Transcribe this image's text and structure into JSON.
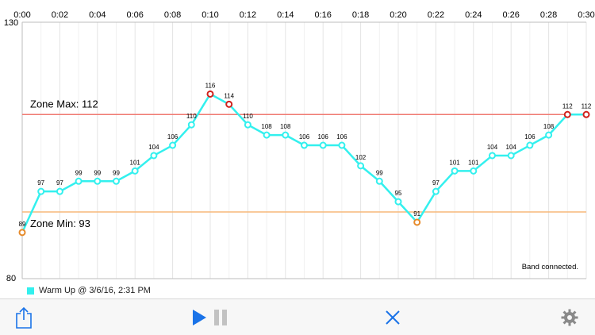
{
  "chart_data": {
    "type": "line",
    "x_ticks": [
      "0:00",
      "0:02",
      "0:04",
      "0:06",
      "0:08",
      "0:10",
      "0:12",
      "0:14",
      "0:16",
      "0:18",
      "0:20",
      "0:22",
      "0:24",
      "0:26",
      "0:28",
      "0:30"
    ],
    "x_unit": "minutes",
    "xlim": [
      0,
      30
    ],
    "ylim": [
      80,
      130
    ],
    "y_tick_labels": [
      "130",
      "80"
    ],
    "grid": "vertical",
    "series": [
      {
        "name": "Warm Up @ 3/6/16, 2:31 PM",
        "color": "#33f0ee",
        "x": [
          0,
          1,
          2,
          3,
          4,
          5,
          6,
          7,
          8,
          9,
          10,
          11,
          12,
          13,
          14,
          15,
          16,
          17,
          18,
          19,
          20,
          21,
          22,
          23,
          24,
          25,
          26,
          27,
          28,
          29,
          30
        ],
        "values": [
          89,
          97,
          97,
          99,
          99,
          99,
          101,
          104,
          106,
          110,
          116,
          114,
          110,
          108,
          108,
          106,
          106,
          106,
          102,
          99,
          95,
          91,
          97,
          101,
          101,
          104,
          104,
          106,
          108,
          112,
          112
        ]
      }
    ],
    "reference_lines": [
      {
        "label": "Zone Max: 112",
        "value": 112,
        "color": "#f07a72"
      },
      {
        "label": "Zone Min: 93",
        "value": 93,
        "color": "#f7b97a"
      }
    ],
    "marker_colors": {
      "normal": "#33f0ee",
      "above_max": "#d0211c",
      "below_min": "#e68a2a"
    },
    "status_text": "Band connected."
  },
  "legend": {
    "label": "Warm Up @ 3/6/16, 2:31 PM",
    "color": "#33f0ee"
  },
  "toolbar": {
    "share_icon": "share-icon",
    "play_icon": "play-icon",
    "pause_icon": "pause-icon",
    "close_icon": "close-icon",
    "settings_icon": "gear-icon",
    "accent_color": "#1a73e8"
  }
}
